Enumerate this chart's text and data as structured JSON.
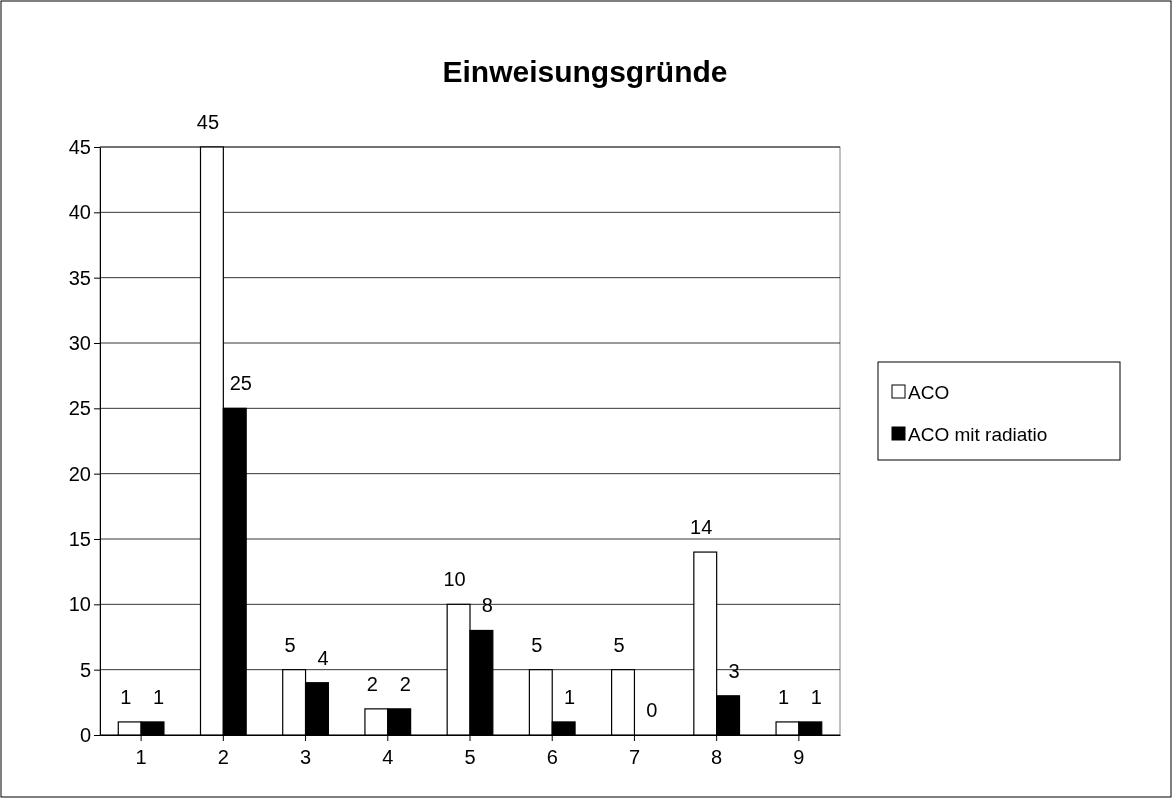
{
  "chart_data": {
    "type": "bar",
    "title": "Einweisungsgründe",
    "categories": [
      "1",
      "2",
      "3",
      "4",
      "5",
      "6",
      "7",
      "8",
      "9"
    ],
    "series": [
      {
        "name": "ACO",
        "color": "#ffffff",
        "values": [
          1,
          45,
          5,
          2,
          10,
          5,
          5,
          14,
          1
        ]
      },
      {
        "name": "ACO mit radiatio",
        "color": "#000000",
        "values": [
          1,
          25,
          4,
          2,
          8,
          1,
          0,
          3,
          1
        ]
      }
    ],
    "ylim": [
      0,
      45
    ],
    "yticks": [
      0,
      5,
      10,
      15,
      20,
      25,
      30,
      35,
      40,
      45
    ],
    "grid": "y",
    "legend": "right",
    "data_labels": true
  }
}
